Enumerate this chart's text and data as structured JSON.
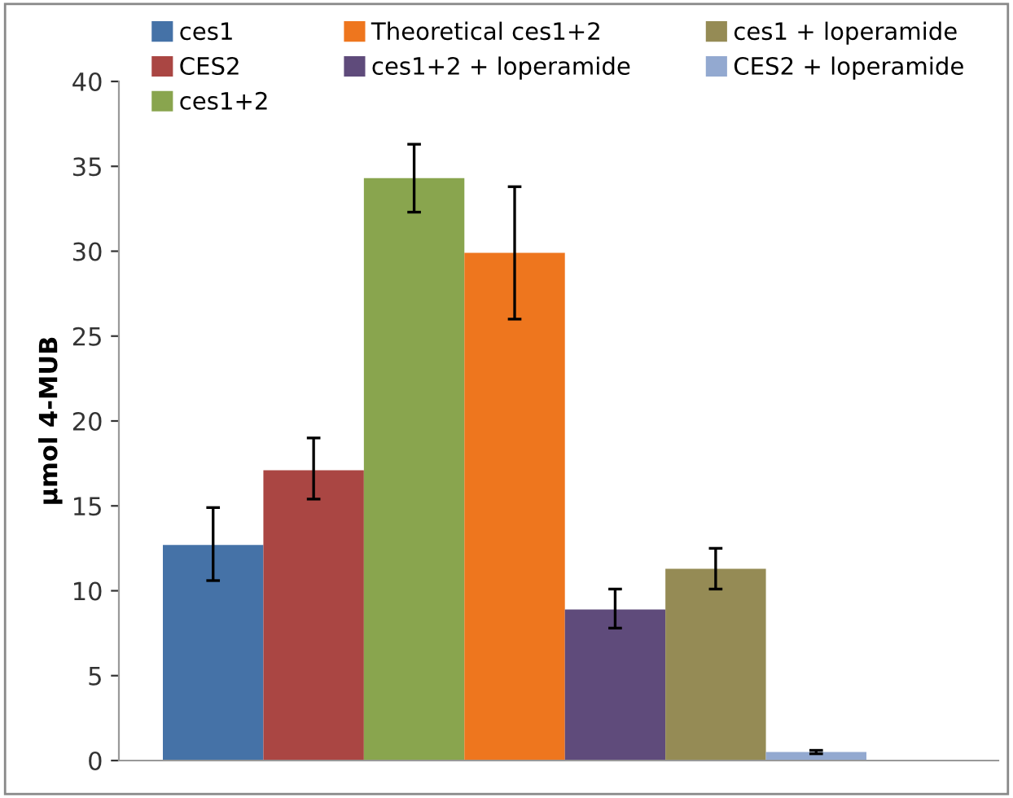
{
  "chart_data": {
    "type": "bar",
    "ylabel": "µmol 4-MUB",
    "categories": [
      null
    ],
    "ylim": [
      0,
      40
    ],
    "yticks": [
      0,
      5,
      10,
      15,
      20,
      25,
      30,
      35,
      40
    ],
    "grid": false,
    "legend": "top",
    "series": [
      {
        "name": "ces1",
        "color": "#4572a7",
        "values": [
          12.7
        ],
        "errors": [
          [
            10.6,
            14.9
          ]
        ]
      },
      {
        "name": "CES2",
        "color": "#aa4643",
        "values": [
          17.1
        ],
        "errors": [
          [
            15.4,
            19.0
          ]
        ]
      },
      {
        "name": "ces1+2",
        "color": "#89a54e",
        "values": [
          34.3
        ],
        "errors": [
          [
            32.3,
            36.3
          ]
        ]
      },
      {
        "name": "Theoretical ces1+2",
        "color": "#ee761e",
        "values": [
          29.9
        ],
        "errors": [
          [
            26.0,
            33.8
          ]
        ]
      },
      {
        "name": "ces1+2 + loperamide",
        "color": "#5f4b7b",
        "values": [
          8.9
        ],
        "errors": [
          [
            7.8,
            10.1
          ]
        ]
      },
      {
        "name": "ces1 + loperamide",
        "color": "#958b55",
        "values": [
          11.3
        ],
        "errors": [
          [
            10.1,
            12.5
          ]
        ]
      },
      {
        "name": "CES2 + loperamide",
        "color": "#93a9d0",
        "values": [
          0.5
        ],
        "errors": [
          [
            0.4,
            0.6
          ]
        ]
      }
    ]
  }
}
